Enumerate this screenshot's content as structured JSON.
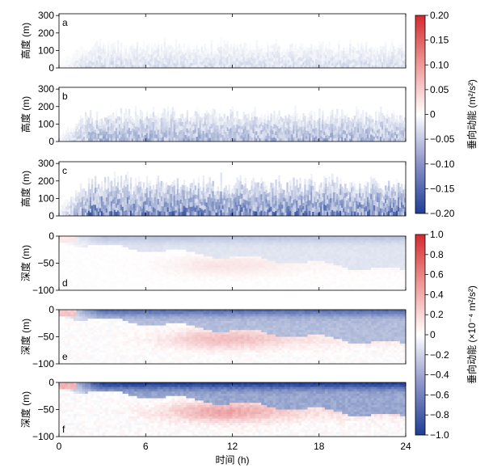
{
  "chart_data": [
    {
      "type": "heatmap",
      "panel": "a",
      "ylabel": "高度 (m)",
      "y_ticks": [
        0,
        100,
        200,
        300
      ],
      "ylim": [
        0,
        310
      ],
      "intensity": 0.25,
      "field": "atm"
    },
    {
      "type": "heatmap",
      "panel": "b",
      "ylabel": "高度 (m)",
      "y_ticks": [
        0,
        100,
        200,
        300
      ],
      "ylim": [
        0,
        310
      ],
      "intensity": 0.55,
      "field": "atm"
    },
    {
      "type": "heatmap",
      "panel": "c",
      "ylabel": "高度 (m)",
      "y_ticks": [
        0,
        100,
        200,
        300
      ],
      "ylim": [
        0,
        310
      ],
      "intensity": 0.9,
      "field": "atm"
    },
    {
      "type": "heatmap",
      "panel": "d",
      "ylabel": "深度 (m)",
      "y_ticks": [
        0,
        -50,
        -100
      ],
      "ylim": [
        -100,
        0
      ],
      "intensity": 0.3,
      "field": "ocean"
    },
    {
      "type": "heatmap",
      "panel": "e",
      "ylabel": "深度 (m)",
      "y_ticks": [
        0,
        -50,
        -100
      ],
      "ylim": [
        -100,
        0
      ],
      "intensity": 0.75,
      "field": "ocean"
    },
    {
      "type": "heatmap",
      "panel": "f",
      "ylabel": "深度 (m)",
      "y_ticks": [
        0,
        -50,
        -100
      ],
      "ylim": [
        -100,
        0
      ],
      "intensity": 1.0,
      "field": "ocean"
    }
  ],
  "x_axis": {
    "label": "时间 (h)",
    "ticks": [
      0,
      6,
      12,
      18,
      24
    ],
    "range": [
      0,
      24
    ]
  },
  "colorbars": [
    {
      "label": "垂向动能 (m²/s²)",
      "ticks": [
        "0.20",
        "0.15",
        "0.10",
        "0.05",
        "0",
        "−0.05",
        "−0.10",
        "−0.15",
        "−0.20"
      ],
      "range": [
        -0.2,
        0.2
      ]
    },
    {
      "label": "垂向动能 (×10⁻⁴ m²/s²)",
      "ticks": [
        "1.0",
        "0.8",
        "0.6",
        "0.4",
        "0.2",
        "0",
        "−0.2",
        "−0.4",
        "−0.6",
        "−0.8",
        "−1.0"
      ],
      "range": [
        -1.0,
        1.0
      ]
    }
  ],
  "colors": {
    "negative": "#1f3e96",
    "zero": "#ffffff",
    "positive": "#d42a2f"
  }
}
